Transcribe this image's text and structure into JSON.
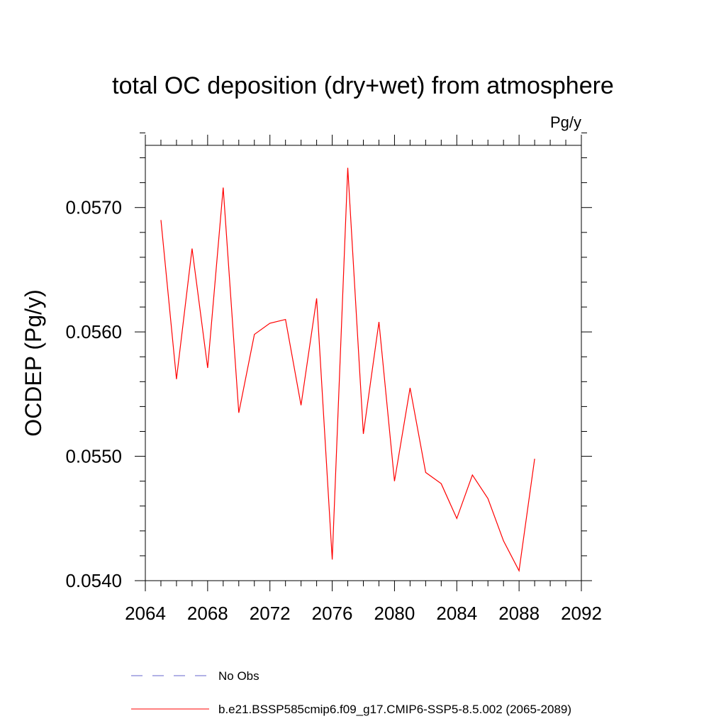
{
  "chart_data": {
    "type": "line",
    "title": "total OC deposition (dry+wet) from atmosphere",
    "units_label": "Pg/y",
    "ylabel": "OCDEP  (Pg/y)",
    "xlabel": "",
    "xlim": [
      2064,
      2092
    ],
    "ylim": [
      0.054,
      0.0575
    ],
    "x_major_ticks": [
      2064,
      2068,
      2072,
      2076,
      2080,
      2084,
      2088,
      2092
    ],
    "x_tick_labels": [
      "2064",
      "2068",
      "2072",
      "2076",
      "2080",
      "2084",
      "2088",
      "2092"
    ],
    "x_minor_step": 1,
    "y_major_ticks": [
      0.054,
      0.055,
      0.056,
      0.057
    ],
    "y_tick_labels": [
      "0.0540",
      "0.0550",
      "0.0560",
      "0.0570"
    ],
    "y_minor_step": 0.0002,
    "grid": false,
    "legend_position": "bottom",
    "legend": [
      {
        "label": "No Obs",
        "color": "#6666cc",
        "dash": "dashed"
      },
      {
        "label": "b.e21.BSSP585cmip6.f09_g17.CMIP6-SSP5-8.5.002 (2065-2089)",
        "color": "#ff0000",
        "dash": "solid"
      }
    ],
    "series": [
      {
        "name": "b.e21.BSSP585cmip6.f09_g17.CMIP6-SSP5-8.5.002 (2065-2089)",
        "color": "#ff0000",
        "x": [
          2065,
          2066,
          2067,
          2068,
          2069,
          2070,
          2071,
          2072,
          2073,
          2074,
          2075,
          2076,
          2077,
          2078,
          2079,
          2080,
          2081,
          2082,
          2083,
          2084,
          2085,
          2086,
          2087,
          2088,
          2089
        ],
        "y": [
          0.0569,
          0.05562,
          0.05667,
          0.05571,
          0.05716,
          0.05535,
          0.05598,
          0.05607,
          0.0561,
          0.05541,
          0.05627,
          0.05417,
          0.05732,
          0.05518,
          0.05608,
          0.0548,
          0.05555,
          0.05487,
          0.05478,
          0.0545,
          0.05485,
          0.05466,
          0.05432,
          0.05408,
          0.05498
        ]
      }
    ]
  }
}
